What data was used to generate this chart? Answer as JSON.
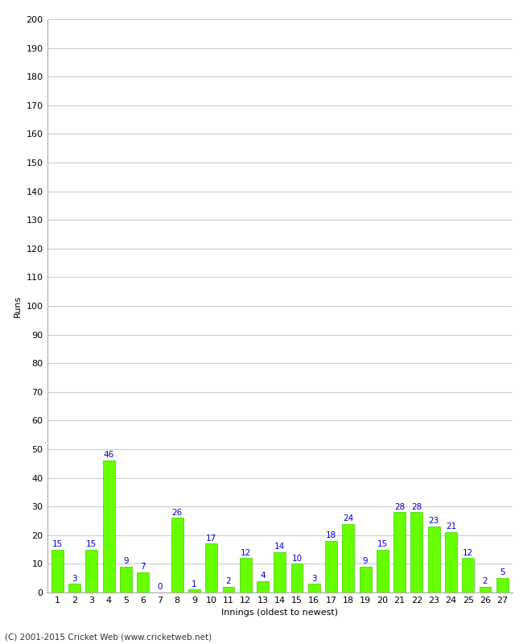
{
  "title": "",
  "xlabel": "Innings (oldest to newest)",
  "ylabel": "Runs",
  "categories": [
    1,
    2,
    3,
    4,
    5,
    6,
    7,
    8,
    9,
    10,
    11,
    12,
    13,
    14,
    15,
    16,
    17,
    18,
    19,
    20,
    21,
    22,
    23,
    24,
    25,
    26,
    27
  ],
  "values": [
    15,
    3,
    15,
    46,
    9,
    7,
    0,
    26,
    1,
    17,
    2,
    12,
    4,
    14,
    10,
    3,
    18,
    24,
    9,
    15,
    28,
    28,
    23,
    21,
    12,
    2,
    5
  ],
  "bar_color": "#66ff00",
  "bar_edge_color": "#44cc00",
  "label_color": "#0000cc",
  "ylim": [
    0,
    200
  ],
  "yticks": [
    0,
    10,
    20,
    30,
    40,
    50,
    60,
    70,
    80,
    90,
    100,
    110,
    120,
    130,
    140,
    150,
    160,
    170,
    180,
    190,
    200
  ],
  "background_color": "#ffffff",
  "plot_bg_color": "#ffffff",
  "footer": "(C) 2001-2015 Cricket Web (www.cricketweb.net)",
  "label_fontsize": 7.5,
  "axis_fontsize": 8,
  "title_fontsize": 11
}
